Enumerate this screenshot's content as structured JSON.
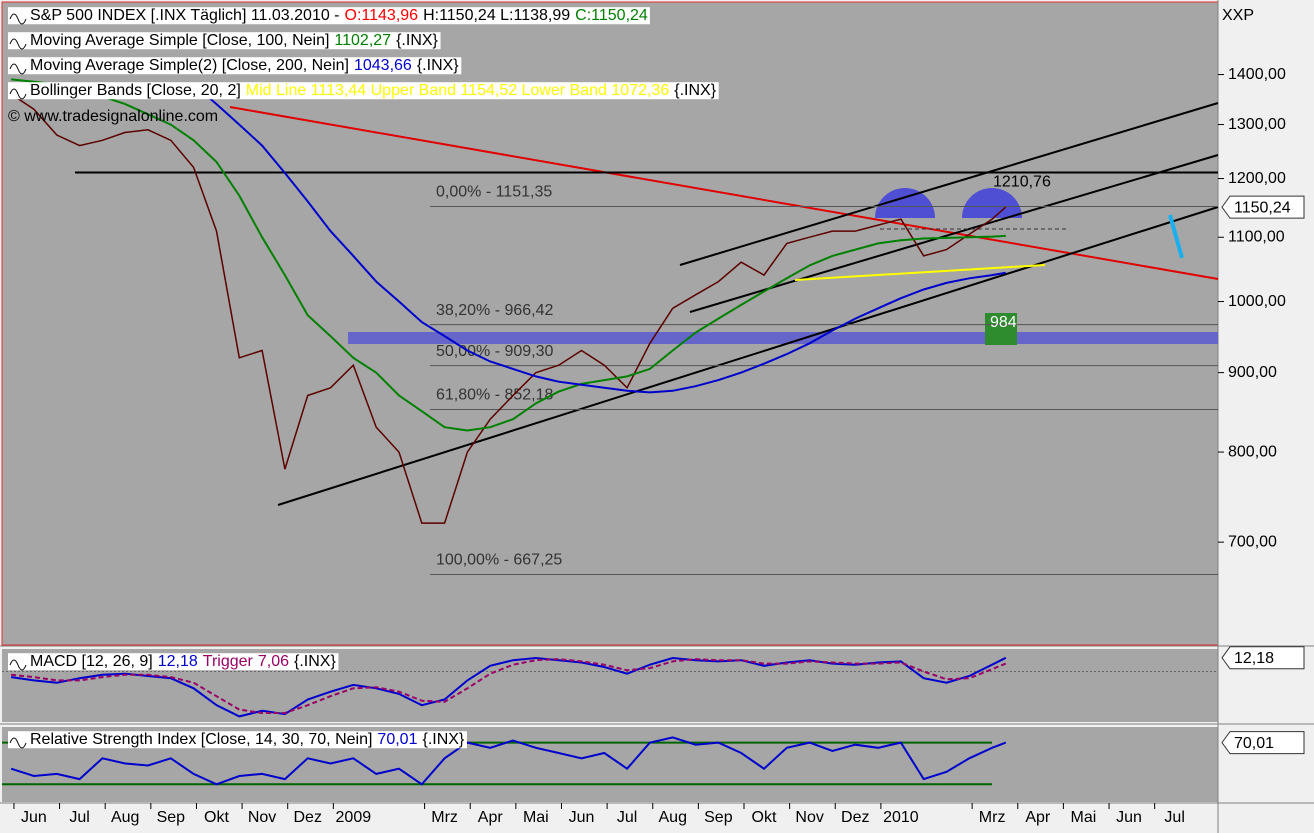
{
  "chart_data": [
    {
      "type": "line",
      "title": "S&P 500 INDEX [.INX  Täglich] 11.03.2010 -",
      "open_label": "O:1143,96",
      "high_low_label": "H:1150,24 L:1138,99",
      "close_label": "C:1150,24",
      "open_color": "#ff0000",
      "close_color": "#008000",
      "axis_label": "XXP",
      "x": [
        -0.5,
        0,
        0.5,
        1,
        1.5,
        2,
        2.5,
        3,
        3.5,
        4,
        4.5,
        5,
        5.5,
        6,
        6.5,
        7,
        7.5,
        8,
        8.5,
        9,
        9.5,
        10,
        10.5,
        11,
        11.5,
        12,
        12.5,
        13,
        13.5,
        14,
        14.5,
        15,
        15.5,
        16,
        16.5,
        17,
        17.5,
        18,
        18.5,
        19,
        19.5,
        20,
        20.5,
        21,
        21.3
      ],
      "xlim": [
        -0.7,
        25.95
      ],
      "xticks": [
        {
          "value": 0,
          "label": "Jun"
        },
        {
          "value": 1,
          "label": "Jul"
        },
        {
          "value": 2,
          "label": "Aug"
        },
        {
          "value": 3,
          "label": "Sep"
        },
        {
          "value": 4,
          "label": "Okt"
        },
        {
          "value": 5,
          "label": "Nov"
        },
        {
          "value": 6,
          "label": "Dez"
        },
        {
          "value": 7,
          "label": "2009"
        },
        {
          "value": 9,
          "label": "Mrz"
        },
        {
          "value": 10,
          "label": "Apr"
        },
        {
          "value": 11,
          "label": "Mai"
        },
        {
          "value": 12,
          "label": "Jun"
        },
        {
          "value": 13,
          "label": "Jul"
        },
        {
          "value": 14,
          "label": "Aug"
        },
        {
          "value": 15,
          "label": "Sep"
        },
        {
          "value": 16,
          "label": "Okt"
        },
        {
          "value": 17,
          "label": "Nov"
        },
        {
          "value": 18,
          "label": "Dez"
        },
        {
          "value": 19,
          "label": "2010"
        },
        {
          "value": 21,
          "label": "Mrz"
        },
        {
          "value": 22,
          "label": "Apr"
        },
        {
          "value": 23,
          "label": "Mai"
        },
        {
          "value": 24,
          "label": "Jun"
        },
        {
          "value": 25,
          "label": "Jul"
        }
      ],
      "ylim": [
        601,
        1559
      ],
      "log_scale": true,
      "yticks": [
        {
          "value": 700,
          "label": "700,00"
        },
        {
          "value": 800,
          "label": "800,00"
        },
        {
          "value": 900,
          "label": "900,00"
        },
        {
          "value": 1000,
          "label": "1000,00"
        },
        {
          "value": 1100,
          "label": "1100,00"
        },
        {
          "value": 1200,
          "label": "1200,00"
        },
        {
          "value": 1300,
          "label": "1300,00"
        },
        {
          "value": 1400,
          "label": "1400,00"
        }
      ],
      "series": [
        {
          "color": "#5b0000",
          "values": [
            1360,
            1330,
            1280,
            1260,
            1270,
            1285,
            1290,
            1270,
            1220,
            1110,
            920,
            930,
            780,
            870,
            880,
            910,
            830,
            800,
            720,
            720,
            800,
            840,
            870,
            900,
            910,
            930,
            910,
            880,
            940,
            990,
            1010,
            1030,
            1060,
            1040,
            1090,
            1100,
            1110,
            1110,
            1120,
            1130,
            1070,
            1080,
            1105,
            1130,
            1150.24
          ]
        },
        {
          "name": "Moving Average Simple [Close, 100, Nein]",
          "legend_value": "1102,27",
          "legend_suffix": "{.INX}",
          "color": "#008000",
          "values": [
            1390,
            1385,
            1380,
            1370,
            1355,
            1340,
            1320,
            1300,
            1270,
            1230,
            1170,
            1100,
            1040,
            980,
            950,
            920,
            900,
            870,
            850,
            830,
            826,
            830,
            840,
            860,
            875,
            885,
            890,
            895,
            905,
            930,
            955,
            975,
            995,
            1015,
            1035,
            1055,
            1070,
            1080,
            1090,
            1095,
            1098,
            1099,
            1100,
            1101,
            1102.27
          ]
        },
        {
          "name": "Moving Average Simple(2) [Close, 200, Nein]",
          "legend_value": "1043,66",
          "legend_suffix": "{.INX}",
          "color": "#0000cc",
          "values": [
            null,
            null,
            null,
            null,
            null,
            null,
            null,
            null,
            1380,
            1340,
            1300,
            1260,
            1210,
            1160,
            1110,
            1070,
            1030,
            1000,
            970,
            950,
            930,
            915,
            905,
            895,
            888,
            884,
            880,
            876,
            874,
            876,
            882,
            890,
            900,
            912,
            925,
            940,
            958,
            975,
            990,
            1005,
            1018,
            1028,
            1035,
            1040,
            1043.66
          ]
        }
      ],
      "bollinger": {
        "name": "Bollinger Bands [Close, 20, 2]",
        "levels": "Mid Line 1113,44 Upper Band 1154,52 Lower Band 1072,36",
        "suffix": "{.INX}",
        "color": "#ffff00"
      },
      "copyright": "© www.tradesignalonline.com",
      "fib_levels": [
        {
          "value": 1151.35,
          "label": "0,00% - 1151,35"
        },
        {
          "value": 966.42,
          "label": "38,20% - 966,42"
        },
        {
          "value": 909.3,
          "label": "50,00% - 909,30"
        },
        {
          "value": 852.18,
          "label": "61,80% - 852,18"
        },
        {
          "value": 667.25,
          "label": "100,00% - 667,25"
        }
      ],
      "resistance": {
        "value": 1210.76,
        "label": "1210,76"
      },
      "last_price": {
        "value": 1150.24,
        "label": "1150,24"
      },
      "target_label": "984"
    },
    {
      "type": "line",
      "x": [
        -0.5,
        0,
        0.5,
        1,
        1.5,
        2,
        2.5,
        3,
        3.5,
        4,
        4.5,
        5,
        5.5,
        6,
        6.5,
        7,
        7.5,
        8,
        8.5,
        9,
        9.5,
        10,
        10.5,
        11,
        11.5,
        12,
        12.5,
        13,
        13.5,
        14,
        14.5,
        15,
        15.5,
        16,
        16.5,
        17,
        17.5,
        18,
        18.5,
        19,
        19.5,
        20,
        20.5,
        21,
        21.3
      ],
      "xlim": [
        -0.7,
        25.95
      ],
      "ylim": [
        -45,
        20
      ],
      "baseline": 0,
      "series": [
        {
          "name": "MACD [12, 26, 9]",
          "legend_value": "12,18",
          "color": "#0000cc",
          "values": [
            -5,
            -8,
            -10,
            -6,
            -3,
            -2,
            -4,
            -6,
            -15,
            -30,
            -40,
            -35,
            -38,
            -25,
            -18,
            -12,
            -15,
            -20,
            -30,
            -25,
            -8,
            5,
            10,
            12,
            10,
            8,
            4,
            -2,
            6,
            12,
            10,
            9,
            10,
            5,
            8,
            10,
            7,
            6,
            8,
            9,
            -6,
            -10,
            -4,
            6,
            12.18
          ]
        },
        {
          "name": "Trigger",
          "legend_value": "7,06",
          "legend_suffix": "{.INX}",
          "color": "#990066",
          "dashed": true,
          "values": [
            -3,
            -5,
            -8,
            -8,
            -5,
            -3,
            -3,
            -5,
            -10,
            -22,
            -34,
            -37,
            -37,
            -30,
            -22,
            -15,
            -14,
            -18,
            -26,
            -27,
            -15,
            -2,
            6,
            10,
            11,
            9,
            6,
            1,
            3,
            9,
            11,
            10,
            10,
            7,
            7,
            9,
            8,
            7,
            7,
            8,
            0,
            -7,
            -6,
            2,
            7.06
          ]
        }
      ],
      "last_value": {
        "value": 12.18,
        "label": "12,18"
      }
    },
    {
      "type": "line",
      "x": [
        -0.5,
        0,
        0.5,
        1,
        1.5,
        2,
        2.5,
        3,
        3.5,
        4,
        4.5,
        5,
        5.5,
        6,
        6.5,
        7,
        7.5,
        8,
        8.5,
        9,
        9.5,
        10,
        10.5,
        11,
        11.5,
        12,
        12.5,
        13,
        13.5,
        14,
        14.5,
        15,
        15.5,
        16,
        16.5,
        17,
        17.5,
        18,
        18.5,
        19,
        19.5,
        20,
        20.5,
        21,
        21.3
      ],
      "xlim": [
        -0.7,
        25.95
      ],
      "ylim": [
        13,
        85
      ],
      "levels": [
        30,
        70
      ],
      "level_color": "#006400",
      "series": [
        {
          "name": "Relative Strength Index [Close, 14, 30, 70, Nein]",
          "legend_value": "70,01",
          "legend_suffix": "{.INX}",
          "color": "#0000cc",
          "values": [
            45,
            38,
            40,
            35,
            55,
            50,
            48,
            55,
            40,
            30,
            38,
            40,
            35,
            55,
            50,
            55,
            40,
            45,
            30,
            55,
            70,
            65,
            72,
            65,
            60,
            55,
            60,
            45,
            70,
            75,
            68,
            70,
            60,
            45,
            65,
            70,
            62,
            68,
            65,
            70,
            35,
            42,
            55,
            65,
            70.01
          ]
        }
      ],
      "last_value": {
        "value": 70.01,
        "label": "70,01"
      }
    }
  ]
}
